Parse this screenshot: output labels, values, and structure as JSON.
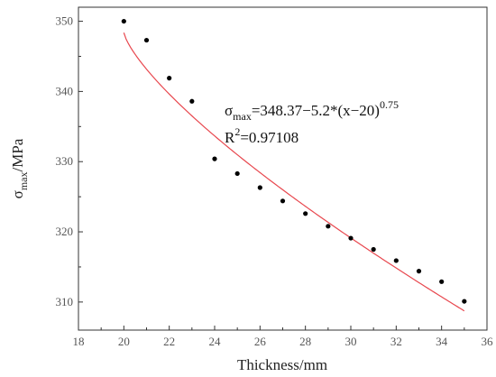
{
  "chart_data": {
    "type": "scatter",
    "title": "",
    "xlabel": "Thickness/mm",
    "ylabel": {
      "main": "σ",
      "sub": "max",
      "rest": "/MPa"
    },
    "xlim": [
      18,
      36
    ],
    "ylim": [
      306,
      352
    ],
    "xticks": [
      18,
      20,
      22,
      24,
      26,
      28,
      30,
      32,
      34,
      36
    ],
    "yticks": [
      310,
      320,
      330,
      340,
      350
    ],
    "grid": false,
    "series": [
      {
        "x": [
          20,
          21,
          22,
          23,
          24,
          25,
          26,
          27,
          28,
          29,
          30,
          31,
          32,
          33,
          34,
          35
        ],
        "y": [
          350.0,
          347.3,
          341.9,
          338.6,
          330.4,
          328.3,
          326.3,
          324.4,
          322.6,
          320.8,
          319.1,
          317.5,
          315.9,
          314.4,
          312.9,
          310.1
        ],
        "color": "#000000"
      }
    ],
    "fit": {
      "x_range": [
        20,
        35
      ],
      "a": 348.37,
      "b": 5.2,
      "x0": 20,
      "p": 0.75,
      "color": "#e8474e"
    },
    "annotation": {
      "eq_sigma": "σ",
      "eq_sub": "max",
      "eq_body": "=348.37−5.2*(x−20)",
      "eq_exp": "0.75",
      "r2_prefix": "R",
      "r2_sup": "2",
      "r2_value": "=0.97108"
    }
  }
}
